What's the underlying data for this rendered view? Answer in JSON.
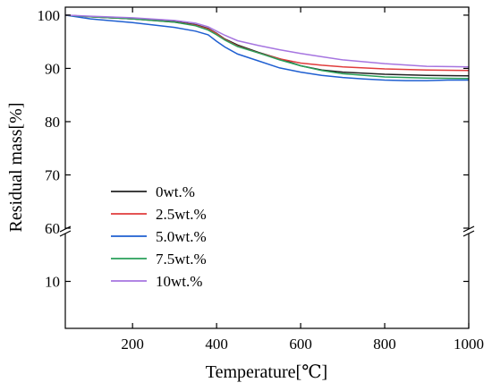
{
  "chart_data": {
    "type": "line",
    "title": "",
    "xlabel": "Temperature[℃]",
    "ylabel": "Residual mass[%]",
    "xlim": [
      40,
      1000
    ],
    "x_ticks": [
      200,
      400,
      600,
      800,
      1000
    ],
    "upper_segment": {
      "ylim": [
        60,
        101.5
      ],
      "y_ticks": [
        60,
        70,
        80,
        90,
        100
      ]
    },
    "lower_segment": {
      "ylim": [
        0,
        20
      ],
      "y_ticks": [
        10
      ]
    },
    "axis_break": true,
    "grid": false,
    "legend": {
      "placement": "lower-left"
    },
    "series": [
      {
        "name": "0wt.%",
        "color": "#222222",
        "x": [
          40,
          100,
          200,
          300,
          350,
          380,
          400,
          420,
          450,
          500,
          550,
          600,
          650,
          700,
          800,
          900,
          1000
        ],
        "y": [
          100,
          99.7,
          99.3,
          98.8,
          98.2,
          97.5,
          96.6,
          95.5,
          94.4,
          93.0,
          91.8,
          90.5,
          89.7,
          89.3,
          88.9,
          88.7,
          88.6
        ]
      },
      {
        "name": "2.5wt.%",
        "color": "#e03c3c",
        "x": [
          40,
          100,
          200,
          300,
          350,
          380,
          400,
          420,
          450,
          500,
          550,
          600,
          650,
          700,
          800,
          900,
          1000
        ],
        "y": [
          100,
          99.7,
          99.3,
          98.7,
          98.1,
          97.4,
          96.5,
          95.4,
          94.2,
          92.9,
          91.8,
          91.0,
          90.6,
          90.3,
          89.9,
          89.7,
          89.6
        ]
      },
      {
        "name": "5.0wt.%",
        "color": "#1f5fd1",
        "x": [
          40,
          100,
          200,
          300,
          350,
          380,
          400,
          420,
          450,
          500,
          550,
          600,
          650,
          700,
          750,
          800,
          850,
          900,
          950,
          1000
        ],
        "y": [
          100,
          99.3,
          98.6,
          97.7,
          97.0,
          96.3,
          95.1,
          94.0,
          92.7,
          91.4,
          90.1,
          89.3,
          88.7,
          88.3,
          88.0,
          87.8,
          87.7,
          87.7,
          87.8,
          87.8
        ]
      },
      {
        "name": "7.5wt.%",
        "color": "#2aa05a",
        "x": [
          40,
          100,
          200,
          300,
          350,
          380,
          400,
          420,
          450,
          500,
          550,
          600,
          650,
          700,
          800,
          900,
          1000
        ],
        "y": [
          100,
          99.7,
          99.3,
          98.7,
          98.0,
          97.2,
          96.3,
          95.3,
          94.1,
          92.9,
          91.6,
          90.5,
          89.6,
          89.0,
          88.4,
          88.2,
          88.1
        ]
      },
      {
        "name": "10wt.%",
        "color": "#a675e0",
        "x": [
          40,
          100,
          200,
          300,
          350,
          380,
          400,
          420,
          450,
          500,
          550,
          600,
          650,
          700,
          800,
          900,
          1000
        ],
        "y": [
          100,
          99.8,
          99.5,
          99.0,
          98.5,
          97.8,
          97.0,
          96.2,
          95.2,
          94.3,
          93.5,
          92.8,
          92.2,
          91.6,
          90.9,
          90.4,
          90.3
        ]
      }
    ]
  }
}
